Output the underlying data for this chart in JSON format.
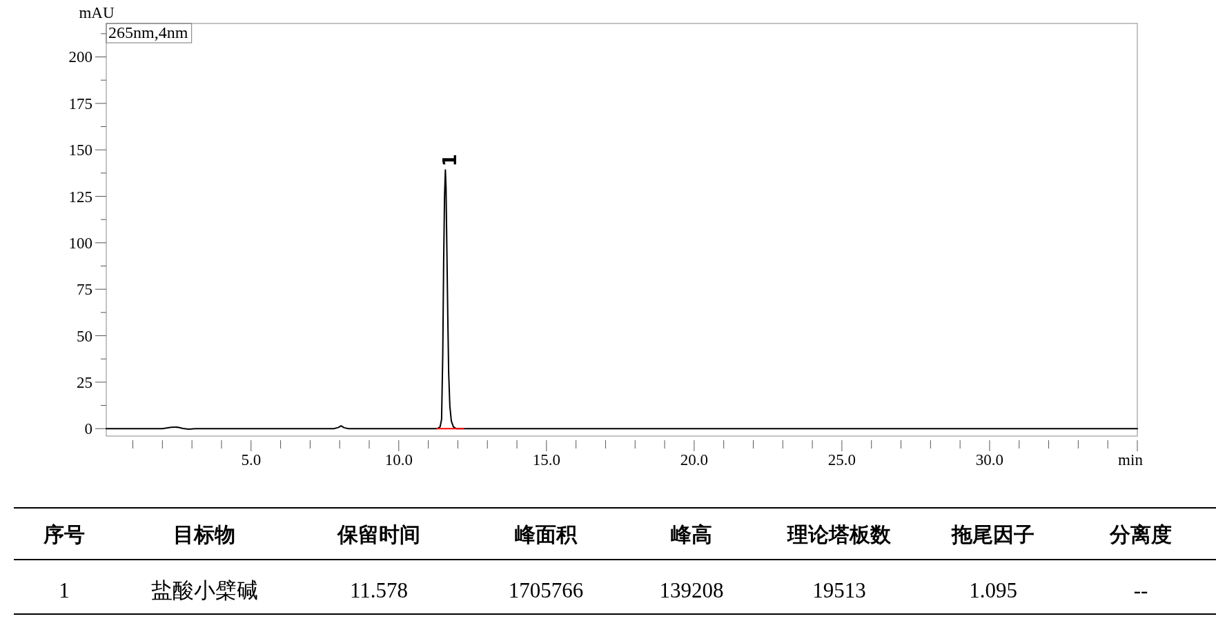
{
  "chart_data": [
    {
      "type": "line",
      "xlabel": "min",
      "ylabel": "mAU",
      "xlim": [
        0.1,
        35
      ],
      "ylim": [
        -4,
        218
      ],
      "xticks": [
        {
          "value": 1,
          "label": null
        },
        {
          "value": 2,
          "label": null
        },
        {
          "value": 3,
          "label": null
        },
        {
          "value": 4,
          "label": null
        },
        {
          "value": 5,
          "label": "5.0"
        },
        {
          "value": 6,
          "label": null
        },
        {
          "value": 7,
          "label": null
        },
        {
          "value": 8,
          "label": null
        },
        {
          "value": 9,
          "label": null
        },
        {
          "value": 10,
          "label": "10.0"
        },
        {
          "value": 11,
          "label": null
        },
        {
          "value": 12,
          "label": null
        },
        {
          "value": 13,
          "label": null
        },
        {
          "value": 14,
          "label": null
        },
        {
          "value": 15,
          "label": "15.0"
        },
        {
          "value": 16,
          "label": null
        },
        {
          "value": 17,
          "label": null
        },
        {
          "value": 18,
          "label": null
        },
        {
          "value": 19,
          "label": null
        },
        {
          "value": 20,
          "label": "20.0"
        },
        {
          "value": 21,
          "label": null
        },
        {
          "value": 22,
          "label": null
        },
        {
          "value": 23,
          "label": null
        },
        {
          "value": 24,
          "label": null
        },
        {
          "value": 25,
          "label": "25.0"
        },
        {
          "value": 26,
          "label": null
        },
        {
          "value": 27,
          "label": null
        },
        {
          "value": 28,
          "label": null
        },
        {
          "value": 29,
          "label": null
        },
        {
          "value": 30,
          "label": "30.0"
        },
        {
          "value": 31,
          "label": null
        },
        {
          "value": 32,
          "label": null
        },
        {
          "value": 33,
          "label": null
        },
        {
          "value": 34,
          "label": null
        },
        {
          "value": 35,
          "label": null
        }
      ],
      "yticks": [
        0,
        {
          "value": 12.5,
          "label": null
        },
        25,
        {
          "value": 37.5,
          "label": null
        },
        50,
        {
          "value": 62.5,
          "label": null
        },
        75,
        {
          "value": 87.5,
          "label": null
        },
        100,
        {
          "value": 112.5,
          "label": null
        },
        125,
        {
          "value": 137.5,
          "label": null
        },
        150,
        {
          "value": 162.5,
          "label": null
        },
        175,
        {
          "value": 187.5,
          "label": null
        },
        200,
        {
          "value": 212.5,
          "label": null
        }
      ],
      "annotations": [
        "265nm,4nm",
        {
          "text": "1",
          "x": 11.578,
          "y": 139.2
        }
      ],
      "series": [
        {
          "color": "#000000",
          "x": [
            0.1,
            2.0,
            2.3,
            2.5,
            2.7,
            2.9,
            3.1,
            7.8,
            7.95,
            8.05,
            8.15,
            8.3,
            11.3,
            11.4,
            11.45,
            11.49,
            11.52,
            11.55,
            11.578,
            11.6,
            11.63,
            11.66,
            11.69,
            11.73,
            11.78,
            11.85,
            11.95,
            35
          ],
          "values": [
            0,
            0,
            0.7,
            0.8,
            0.1,
            -0.3,
            0,
            0,
            0.6,
            1.5,
            0.5,
            0,
            0,
            1,
            5,
            40,
            90,
            125,
            139.2,
            130,
            95,
            60,
            30,
            12,
            4,
            1,
            0,
            0
          ]
        },
        {
          "color": "#ff0000",
          "x": [
            11.3,
            12.2
          ],
          "values": [
            0,
            0
          ]
        }
      ]
    },
    {
      "type": "other",
      "categories": [
        "序号",
        "目标物",
        "保留时间",
        "峰面积",
        "峰高",
        "理论塔板数",
        "拖尾因子",
        "分离度"
      ],
      "annotations": [
        "1",
        "盐酸小檗碱",
        "11.578",
        "1705766",
        "139208",
        "19513",
        "1.095",
        "--"
      ]
    }
  ]
}
